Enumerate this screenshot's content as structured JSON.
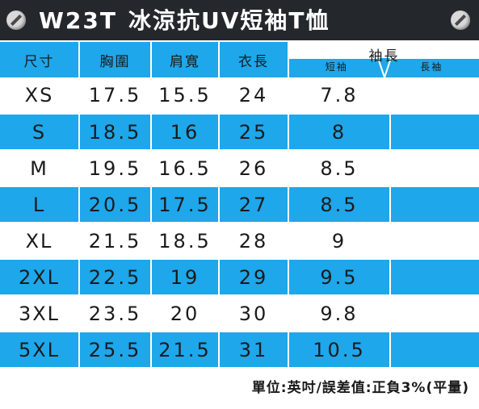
{
  "title": {
    "code": "W23T",
    "name": "冰涼抗UV短袖T恤"
  },
  "headers": {
    "size": "尺寸",
    "chest": "胸圍",
    "shoulder": "肩寬",
    "length": "衣長",
    "sleeve": "袖長",
    "short_sleeve": "短袖",
    "long_sleeve": "長袖"
  },
  "rows": [
    {
      "size": "XS",
      "chest": "17.5",
      "shoulder": "15.5",
      "length": "24",
      "short_sleeve": "7.8",
      "long_sleeve": ""
    },
    {
      "size": "S",
      "chest": "18.5",
      "shoulder": "16",
      "length": "25",
      "short_sleeve": "8",
      "long_sleeve": ""
    },
    {
      "size": "M",
      "chest": "19.5",
      "shoulder": "16.5",
      "length": "26",
      "short_sleeve": "8.5",
      "long_sleeve": ""
    },
    {
      "size": "L",
      "chest": "20.5",
      "shoulder": "17.5",
      "length": "27",
      "short_sleeve": "8.5",
      "long_sleeve": ""
    },
    {
      "size": "XL",
      "chest": "21.5",
      "shoulder": "18.5",
      "length": "28",
      "short_sleeve": "9",
      "long_sleeve": ""
    },
    {
      "size": "2XL",
      "chest": "22.5",
      "shoulder": "19",
      "length": "29",
      "short_sleeve": "9.5",
      "long_sleeve": ""
    },
    {
      "size": "3XL",
      "chest": "23.5",
      "shoulder": "20",
      "length": "30",
      "short_sleeve": "9.8",
      "long_sleeve": ""
    },
    {
      "size": "5XL",
      "chest": "25.5",
      "shoulder": "21.5",
      "length": "31",
      "short_sleeve": "10.5",
      "long_sleeve": ""
    }
  ],
  "footer": "單位:英吋/誤差值:正負3%(平量)",
  "colors": {
    "header_bg": "#24282d",
    "stripe": "#1ea7ea",
    "text": "#1a1a1a"
  }
}
